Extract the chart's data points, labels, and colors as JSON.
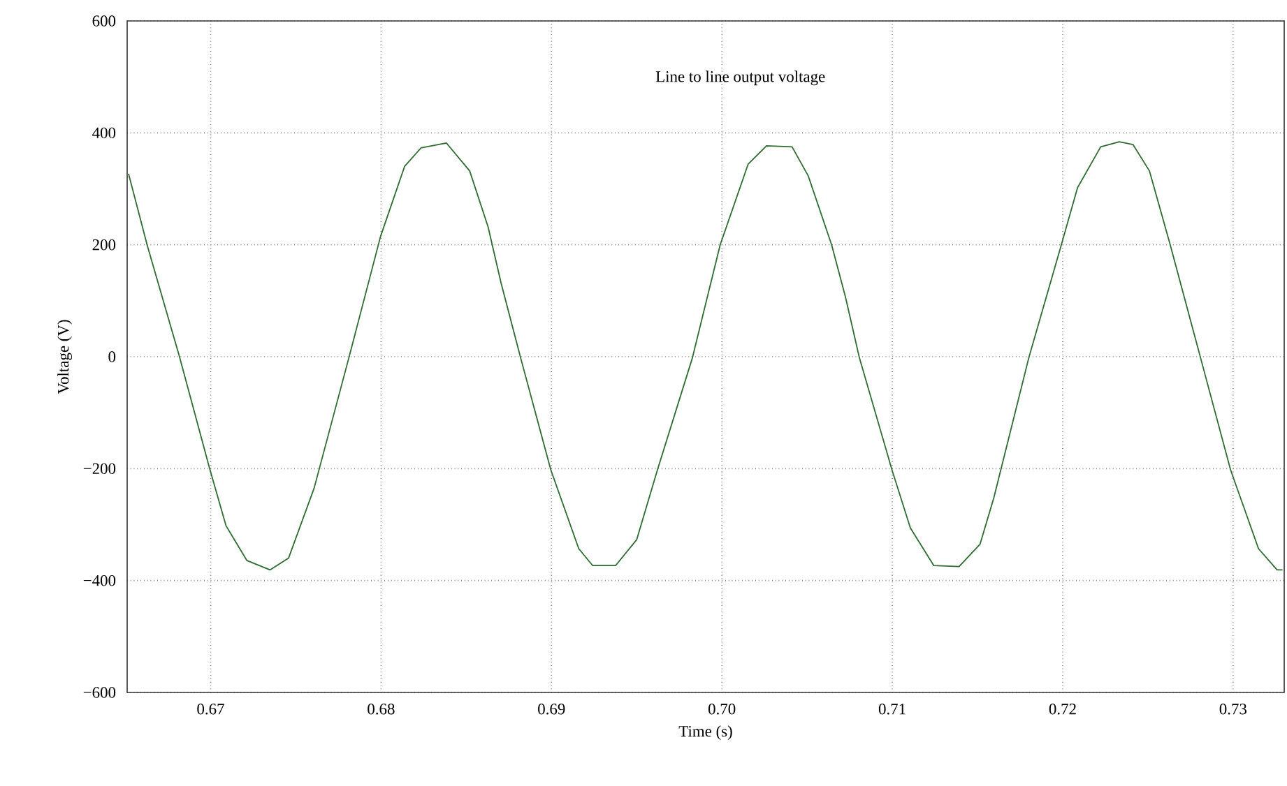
{
  "chart_data": {
    "type": "line",
    "xlabel": "Time (s)",
    "ylabel": "Voltage (V)",
    "annotations": [
      "Line to line output voltage"
    ],
    "xlim": [
      0.6651,
      0.733
    ],
    "xticks": [
      {
        "value": 0.67,
        "label": "0.67"
      },
      {
        "value": 0.68,
        "label": "0.68"
      },
      {
        "value": 0.69,
        "label": "0.69"
      },
      {
        "value": 0.7,
        "label": "0.70"
      },
      {
        "value": 0.71,
        "label": "0.71"
      },
      {
        "value": 0.72,
        "label": "0.72"
      },
      {
        "value": 0.73,
        "label": "0.73"
      }
    ],
    "ylim": [
      -600,
      600
    ],
    "yticks": [
      {
        "value": -600,
        "label": "−600"
      },
      {
        "value": -400,
        "label": "−400"
      },
      {
        "value": -200,
        "label": "−200"
      },
      0,
      200,
      400,
      600
    ],
    "grid": true,
    "marker": "none",
    "line_style": "solid",
    "series": [
      {
        "color": "#2e6b30",
        "x": [
          0.66518,
          0.66627,
          0.66817,
          0.66994,
          0.6709,
          0.67212,
          0.67348,
          0.67457,
          0.67607,
          0.67811,
          0.67997,
          0.68138,
          0.68234,
          0.68383,
          0.6852,
          0.68628,
          0.68704,
          0.68819,
          0.68996,
          0.6916,
          0.69241,
          0.69377,
          0.695,
          0.69622,
          0.69827,
          0.6999,
          0.70154,
          0.70262,
          0.70412,
          0.70507,
          0.70644,
          0.70725,
          0.70807,
          0.70998,
          0.71106,
          0.71243,
          0.71392,
          0.71515,
          0.71596,
          0.71801,
          0.71992,
          0.72087,
          0.72223,
          0.72332,
          0.72413,
          0.72509,
          0.72631,
          0.72809,
          0.72985,
          0.73149,
          0.73258,
          0.7329
        ],
        "values": [
          327,
          200,
          0,
          -200,
          -302,
          -364,
          -381,
          -360,
          -235,
          -2,
          215,
          340,
          373,
          382,
          332,
          232,
          132,
          -2,
          -202,
          -343,
          -373,
          -373,
          -327,
          -202,
          -2,
          200,
          344,
          377,
          375,
          323,
          200,
          107,
          -2,
          -202,
          -306,
          -373,
          -375,
          -335,
          -252,
          -2,
          200,
          302,
          375,
          384,
          379,
          332,
          200,
          -2,
          -202,
          -343,
          -381,
          -381
        ]
      }
    ]
  }
}
